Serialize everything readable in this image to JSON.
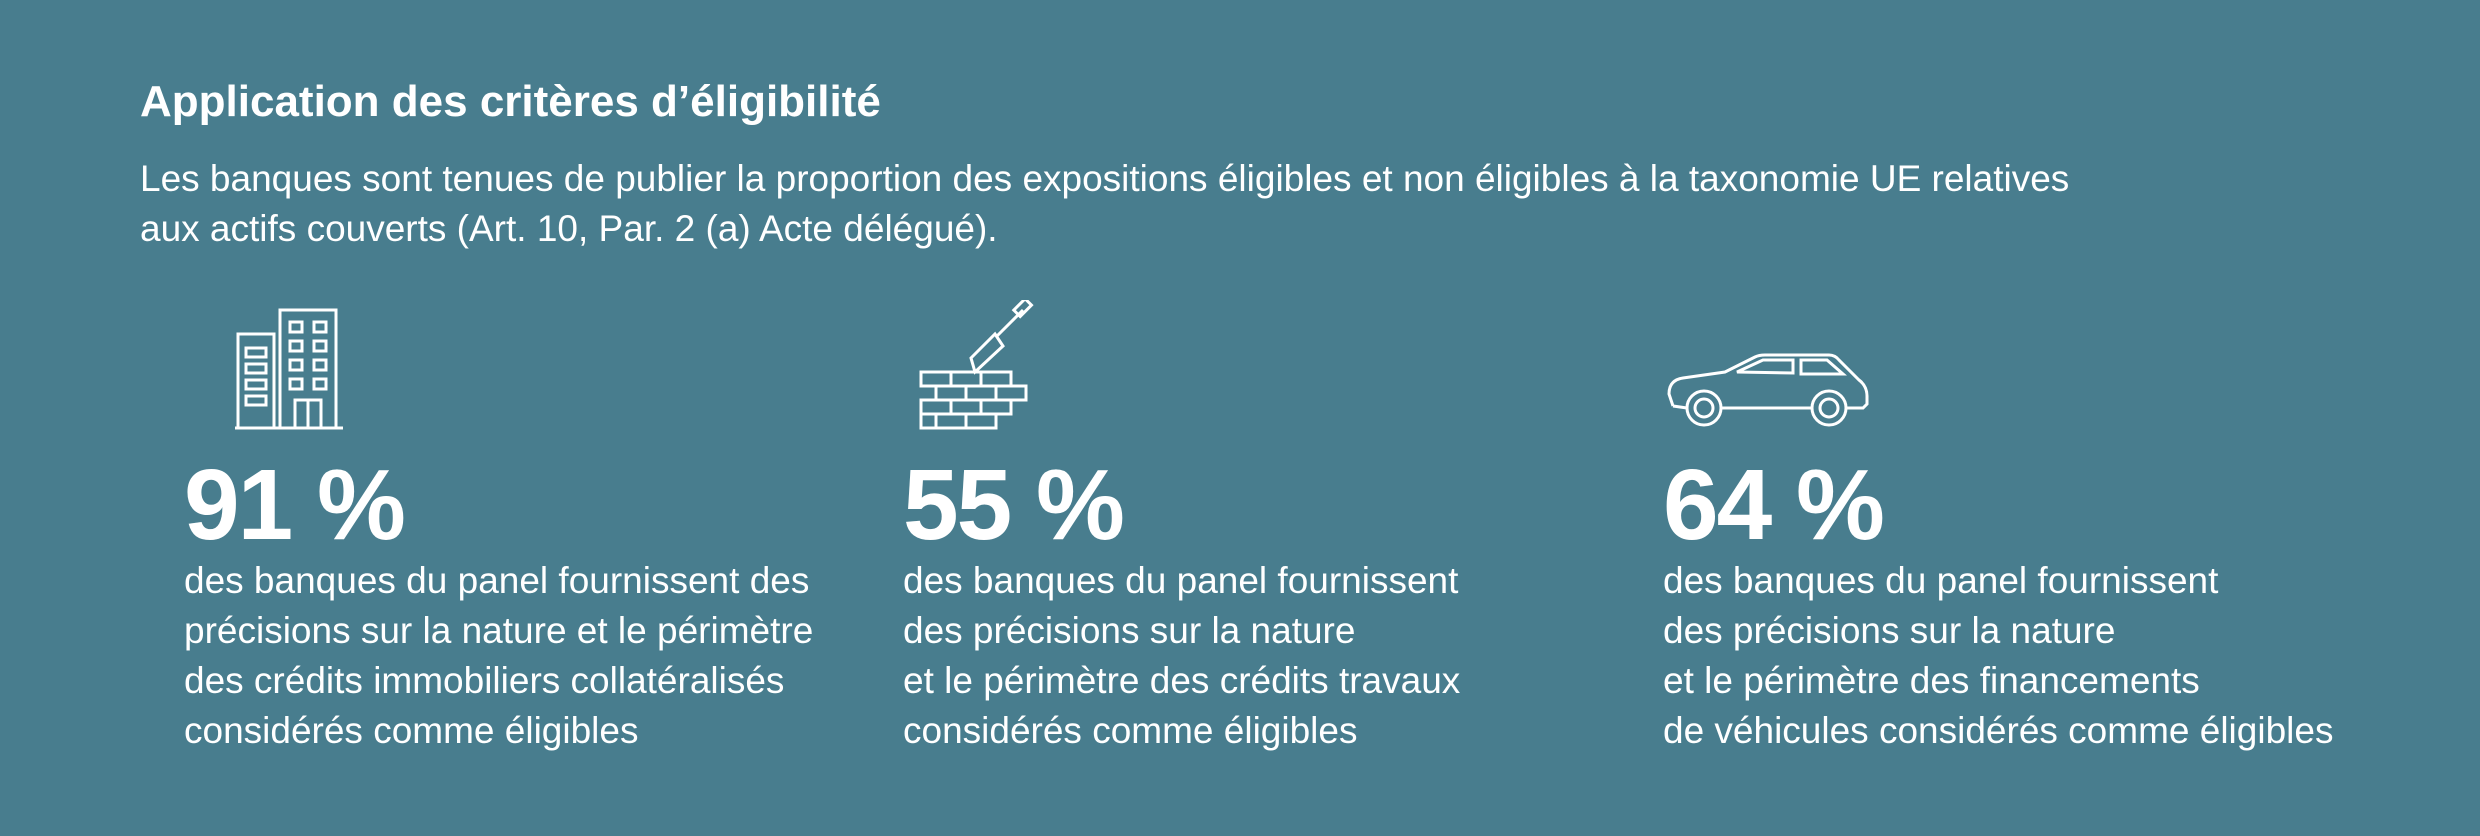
{
  "header": {
    "title": "Application des critères d’éligibilité",
    "intro_lines": [
      "Les banques sont tenues de publier la proportion des expositions éligibles et non éligibles à la taxonomie UE relatives",
      "aux actifs couverts (Art. 10, Par. 2 (a) Acte délégué)."
    ]
  },
  "stats": [
    {
      "icon": "building-icon",
      "value": "91 %",
      "lines": [
        "des banques du panel fournissent des",
        "précisions sur la nature et le périmètre",
        "des crédits immobiliers collatéralisés",
        "considérés comme éligibles"
      ]
    },
    {
      "icon": "brick-wall-trowel-icon",
      "value": "55 %",
      "lines": [
        "des banques du panel fournissent",
        "des précisions sur la nature",
        "et le périmètre des crédits travaux",
        "considérés comme éligibles"
      ]
    },
    {
      "icon": "car-icon",
      "value": "64 %",
      "lines": [
        "des banques du panel fournissent",
        "des précisions sur la nature",
        "et le périmètre des financements",
        "de véhicules considérés comme éligibles"
      ]
    }
  ],
  "colors": {
    "background": "#487d8e",
    "text": "#ffffff"
  }
}
